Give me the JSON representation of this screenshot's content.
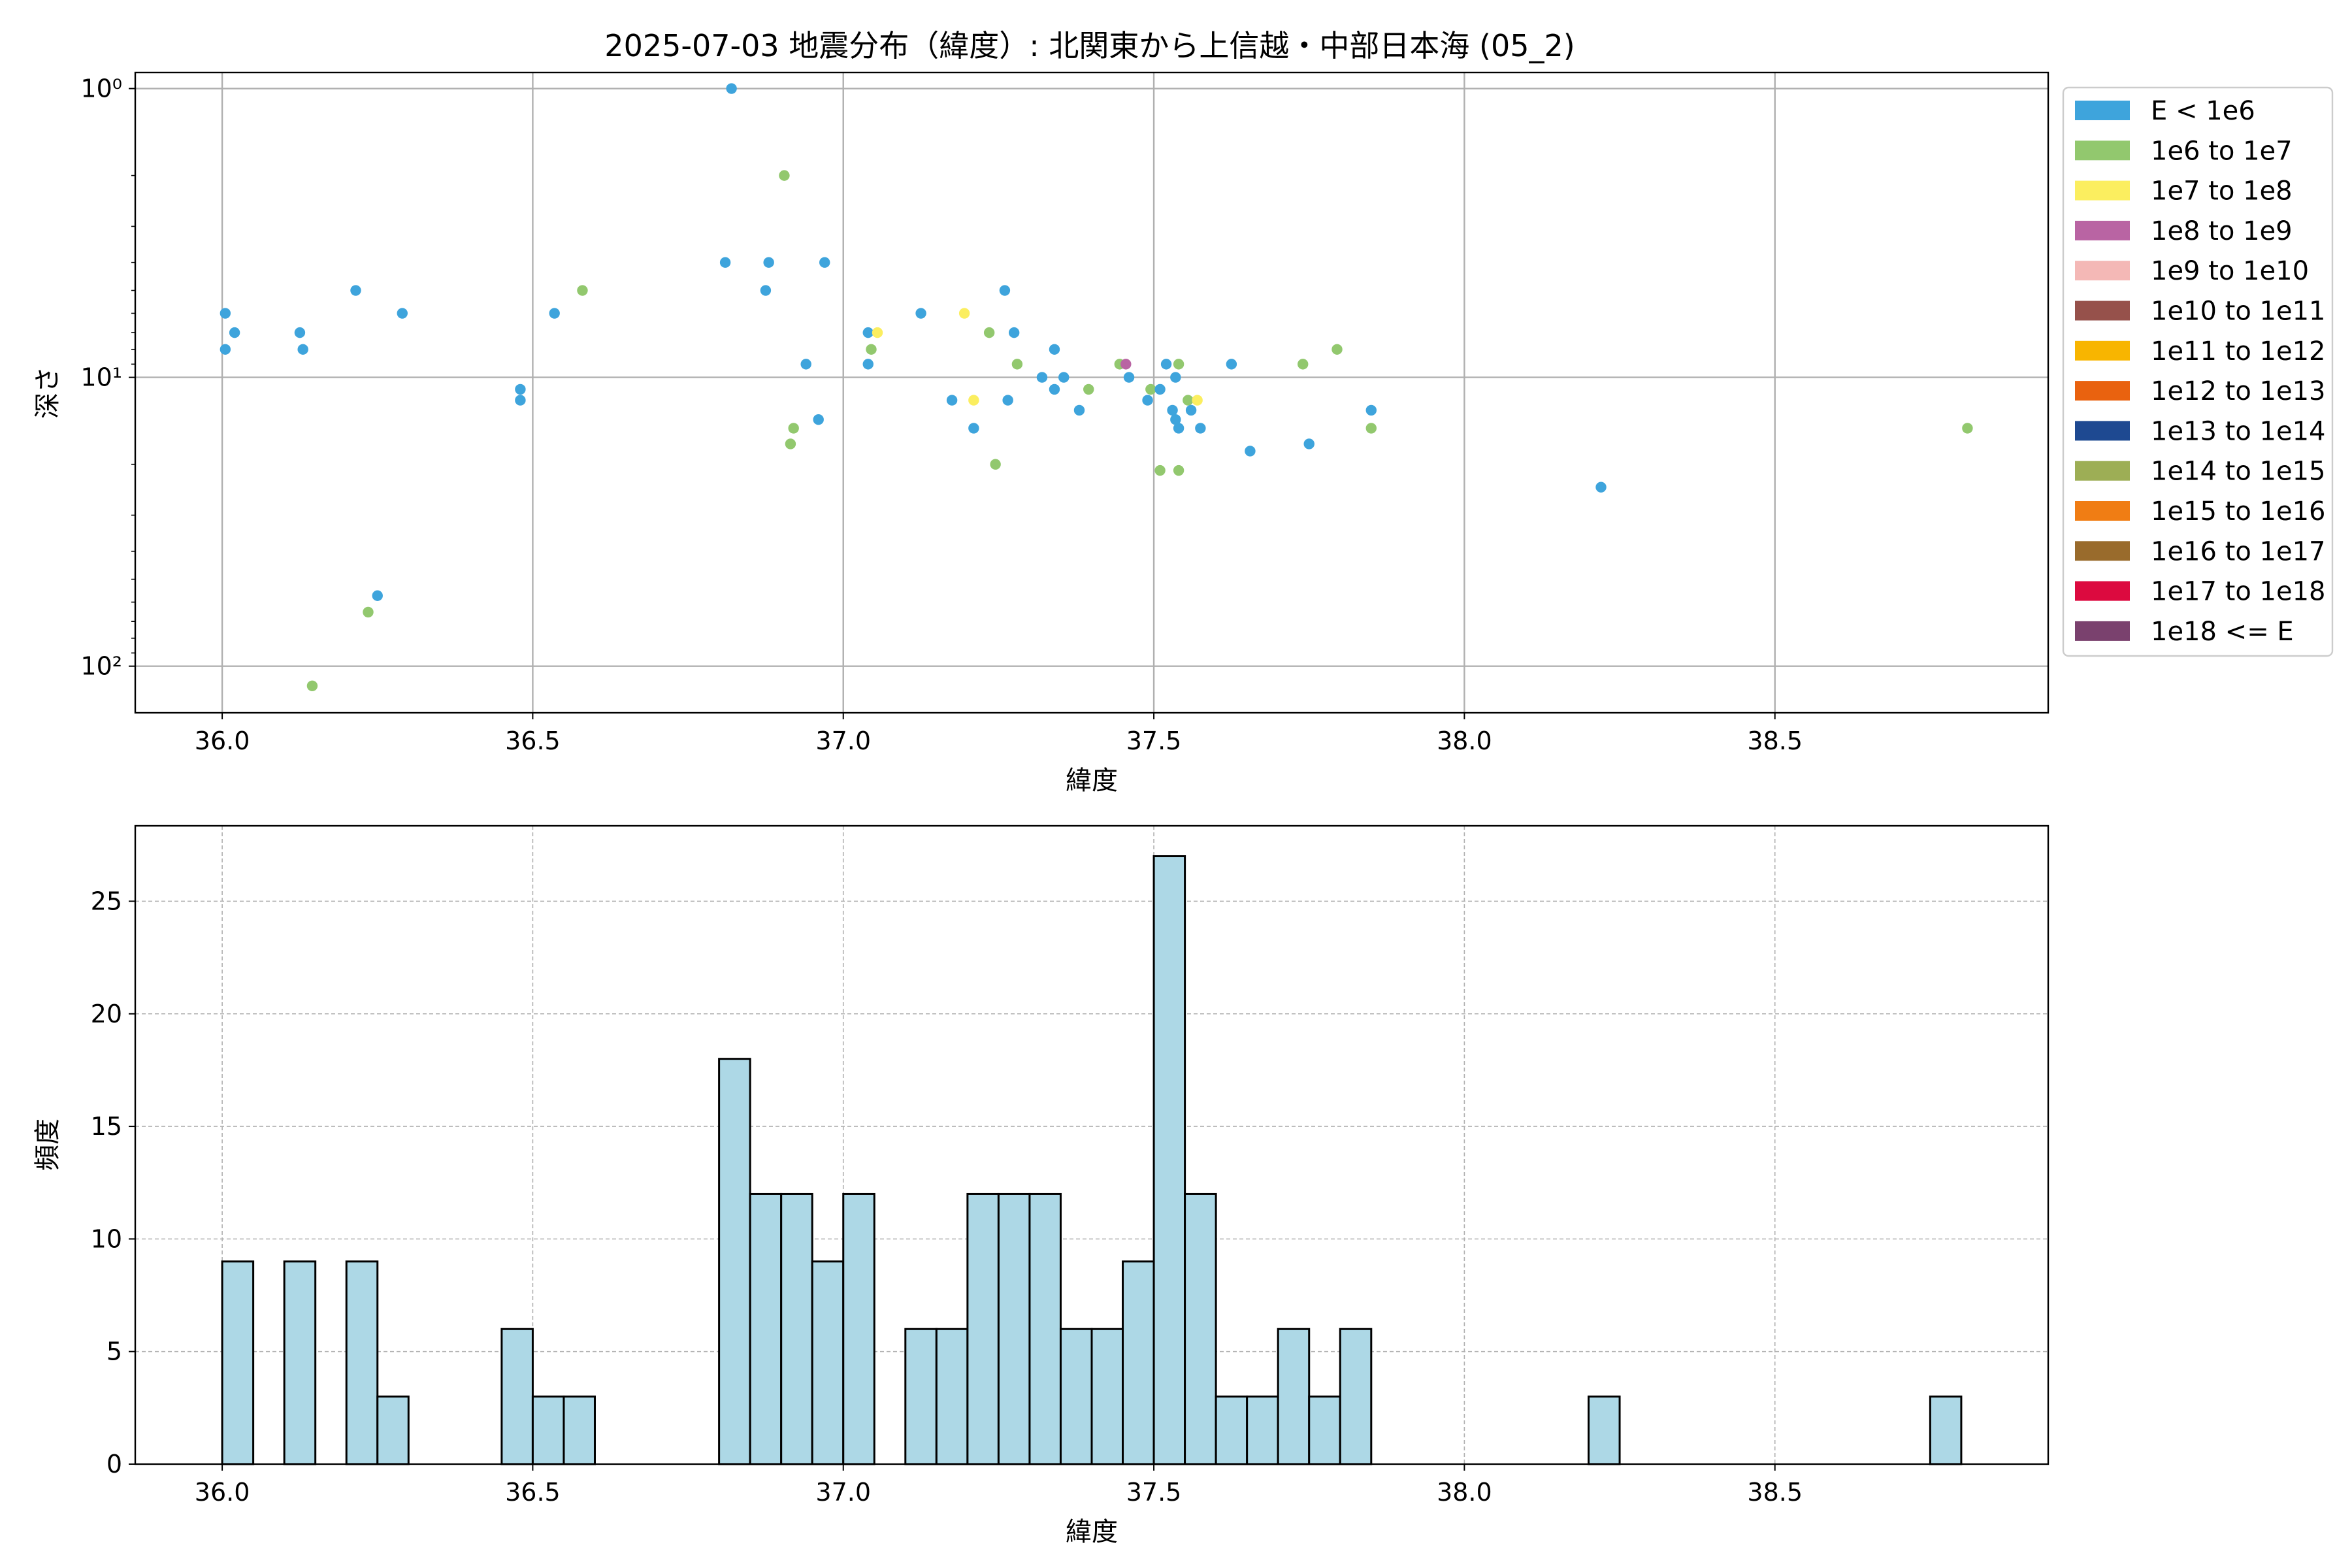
{
  "scatter": {
    "title": "2025-07-03 地震分布（緯度）: 北関東から上信越・中部日本海 (05_2)",
    "xlabel": "緯度",
    "ylabel": "深さ",
    "xticks": [
      "36.0",
      "36.5",
      "37.0",
      "37.5",
      "38.0",
      "38.5"
    ],
    "yticks": [
      "10⁰",
      "10¹",
      "10²"
    ],
    "legend": [
      {
        "label": "E < 1e6",
        "color": "#3ea4dc"
      },
      {
        "label": "1e6 to 1e7",
        "color": "#92c86e"
      },
      {
        "label": "1e7 to 1e8",
        "color": "#fbee5f"
      },
      {
        "label": "1e8 to 1e9",
        "color": "#b964a3"
      },
      {
        "label": "1e9 to 1e10",
        "color": "#f4b8b6"
      },
      {
        "label": "1e10 to 1e11",
        "color": "#96514b"
      },
      {
        "label": "1e11 to 1e12",
        "color": "#f8b500"
      },
      {
        "label": "1e12 to 1e13",
        "color": "#e9620f"
      },
      {
        "label": "1e13 to 1e14",
        "color": "#1e4991"
      },
      {
        "label": "1e14 to 1e15",
        "color": "#9dae55"
      },
      {
        "label": "1e15 to 1e16",
        "color": "#f07d14"
      },
      {
        "label": "1e16 to 1e17",
        "color": "#996b2c"
      },
      {
        "label": "1e17 to 1e18",
        "color": "#dc0a3f"
      },
      {
        "label": "1e18 <= E",
        "color": "#7a416e"
      }
    ]
  },
  "histogram": {
    "xlabel": "緯度",
    "ylabel": "頻度",
    "xticks": [
      "36.0",
      "36.5",
      "37.0",
      "37.5",
      "38.0",
      "38.5"
    ],
    "yticks": [
      "0",
      "5",
      "10",
      "15",
      "20",
      "25"
    ],
    "bar_color": "#add8e6"
  },
  "chart_data": [
    {
      "type": "scatter",
      "title": "2025-07-03 地震分布（緯度）: 北関東から上信越・中部日本海 (05_2)",
      "xlabel": "緯度",
      "ylabel": "深さ",
      "xlim": [
        35.86,
        38.94
      ],
      "ylim": [
        145,
        0.88
      ],
      "yscale": "log",
      "grid": true,
      "legend_position": "outside-right",
      "points": [
        {
          "x": 36.005,
          "y": 6,
          "c": 0
        },
        {
          "x": 36.005,
          "y": 8,
          "c": 0
        },
        {
          "x": 36.02,
          "y": 7,
          "c": 0
        },
        {
          "x": 36.125,
          "y": 7,
          "c": 0
        },
        {
          "x": 36.13,
          "y": 8,
          "c": 0
        },
        {
          "x": 36.145,
          "y": 117,
          "c": 1
        },
        {
          "x": 36.215,
          "y": 5,
          "c": 0
        },
        {
          "x": 36.235,
          "y": 65,
          "c": 1
        },
        {
          "x": 36.25,
          "y": 57,
          "c": 0
        },
        {
          "x": 36.29,
          "y": 6,
          "c": 0
        },
        {
          "x": 36.48,
          "y": 11,
          "c": 0
        },
        {
          "x": 36.48,
          "y": 12,
          "c": 0
        },
        {
          "x": 36.535,
          "y": 6,
          "c": 0
        },
        {
          "x": 36.58,
          "y": 5,
          "c": 1
        },
        {
          "x": 36.81,
          "y": 4,
          "c": 0
        },
        {
          "x": 36.82,
          "y": 1,
          "c": 0
        },
        {
          "x": 36.875,
          "y": 5,
          "c": 0
        },
        {
          "x": 36.88,
          "y": 4,
          "c": 0
        },
        {
          "x": 36.905,
          "y": 2,
          "c": 1
        },
        {
          "x": 36.915,
          "y": 17,
          "c": 1
        },
        {
          "x": 36.92,
          "y": 15,
          "c": 1
        },
        {
          "x": 36.94,
          "y": 9,
          "c": 0
        },
        {
          "x": 36.96,
          "y": 14,
          "c": 0
        },
        {
          "x": 36.97,
          "y": 4,
          "c": 0
        },
        {
          "x": 37.04,
          "y": 7,
          "c": 0
        },
        {
          "x": 37.04,
          "y": 9,
          "c": 0
        },
        {
          "x": 37.045,
          "y": 8,
          "c": 1
        },
        {
          "x": 37.055,
          "y": 7,
          "c": 2
        },
        {
          "x": 37.125,
          "y": 6,
          "c": 0
        },
        {
          "x": 37.175,
          "y": 12,
          "c": 0
        },
        {
          "x": 37.195,
          "y": 6,
          "c": 2
        },
        {
          "x": 37.21,
          "y": 15,
          "c": 0
        },
        {
          "x": 37.21,
          "y": 12,
          "c": 2
        },
        {
          "x": 37.235,
          "y": 7,
          "c": 1
        },
        {
          "x": 37.245,
          "y": 20,
          "c": 1
        },
        {
          "x": 37.26,
          "y": 5,
          "c": 0
        },
        {
          "x": 37.265,
          "y": 12,
          "c": 0
        },
        {
          "x": 37.275,
          "y": 7,
          "c": 0
        },
        {
          "x": 37.28,
          "y": 9,
          "c": 1
        },
        {
          "x": 37.32,
          "y": 10,
          "c": 0
        },
        {
          "x": 37.34,
          "y": 8,
          "c": 0
        },
        {
          "x": 37.34,
          "y": 11,
          "c": 0
        },
        {
          "x": 37.355,
          "y": 10,
          "c": 0
        },
        {
          "x": 37.38,
          "y": 13,
          "c": 0
        },
        {
          "x": 37.395,
          "y": 11,
          "c": 1
        },
        {
          "x": 37.445,
          "y": 9,
          "c": 1
        },
        {
          "x": 37.455,
          "y": 9,
          "c": 3
        },
        {
          "x": 37.46,
          "y": 10,
          "c": 0
        },
        {
          "x": 37.49,
          "y": 12,
          "c": 0
        },
        {
          "x": 37.495,
          "y": 11,
          "c": 1
        },
        {
          "x": 37.51,
          "y": 11,
          "c": 0
        },
        {
          "x": 37.51,
          "y": 21,
          "c": 1
        },
        {
          "x": 37.52,
          "y": 9,
          "c": 0
        },
        {
          "x": 37.53,
          "y": 13,
          "c": 0
        },
        {
          "x": 37.535,
          "y": 10,
          "c": 0
        },
        {
          "x": 37.535,
          "y": 14,
          "c": 0
        },
        {
          "x": 37.54,
          "y": 9,
          "c": 1
        },
        {
          "x": 37.54,
          "y": 15,
          "c": 0
        },
        {
          "x": 37.54,
          "y": 21,
          "c": 1
        },
        {
          "x": 37.555,
          "y": 12,
          "c": 1
        },
        {
          "x": 37.56,
          "y": 13,
          "c": 0
        },
        {
          "x": 37.57,
          "y": 12,
          "c": 2
        },
        {
          "x": 37.575,
          "y": 15,
          "c": 0
        },
        {
          "x": 37.625,
          "y": 9,
          "c": 0
        },
        {
          "x": 37.655,
          "y": 18,
          "c": 0
        },
        {
          "x": 37.74,
          "y": 9,
          "c": 1
        },
        {
          "x": 37.75,
          "y": 17,
          "c": 0
        },
        {
          "x": 37.795,
          "y": 8,
          "c": 1
        },
        {
          "x": 37.85,
          "y": 13,
          "c": 0
        },
        {
          "x": 37.85,
          "y": 15,
          "c": 1
        },
        {
          "x": 38.22,
          "y": 24,
          "c": 0
        },
        {
          "x": 38.81,
          "y": 15,
          "c": 1
        }
      ]
    },
    {
      "type": "bar",
      "xlabel": "緯度",
      "ylabel": "頻度",
      "xlim": [
        35.86,
        38.94
      ],
      "ylim": [
        0,
        28.35
      ],
      "grid": true,
      "bin_width": 0.05,
      "bins": [
        {
          "x0": 36.0,
          "x1": 36.05,
          "count": 9
        },
        {
          "x0": 36.1,
          "x1": 36.15,
          "count": 9
        },
        {
          "x0": 36.2,
          "x1": 36.25,
          "count": 9
        },
        {
          "x0": 36.25,
          "x1": 36.3,
          "count": 3
        },
        {
          "x0": 36.45,
          "x1": 36.5,
          "count": 6
        },
        {
          "x0": 36.5,
          "x1": 36.55,
          "count": 3
        },
        {
          "x0": 36.55,
          "x1": 36.6,
          "count": 3
        },
        {
          "x0": 36.8,
          "x1": 36.85,
          "count": 18
        },
        {
          "x0": 36.85,
          "x1": 36.9,
          "count": 12
        },
        {
          "x0": 36.9,
          "x1": 36.95,
          "count": 12
        },
        {
          "x0": 36.95,
          "x1": 37.0,
          "count": 9
        },
        {
          "x0": 37.0,
          "x1": 37.05,
          "count": 12
        },
        {
          "x0": 37.1,
          "x1": 37.15,
          "count": 6
        },
        {
          "x0": 37.15,
          "x1": 37.2,
          "count": 6
        },
        {
          "x0": 37.2,
          "x1": 37.25,
          "count": 12
        },
        {
          "x0": 37.25,
          "x1": 37.3,
          "count": 12
        },
        {
          "x0": 37.3,
          "x1": 37.35,
          "count": 12
        },
        {
          "x0": 37.35,
          "x1": 37.4,
          "count": 6
        },
        {
          "x0": 37.4,
          "x1": 37.45,
          "count": 6
        },
        {
          "x0": 37.45,
          "x1": 37.5,
          "count": 9
        },
        {
          "x0": 37.5,
          "x1": 37.55,
          "count": 27
        },
        {
          "x0": 37.55,
          "x1": 37.6,
          "count": 12
        },
        {
          "x0": 37.6,
          "x1": 37.65,
          "count": 3
        },
        {
          "x0": 37.65,
          "x1": 37.7,
          "count": 3
        },
        {
          "x0": 37.7,
          "x1": 37.75,
          "count": 6
        },
        {
          "x0": 37.75,
          "x1": 37.8,
          "count": 3
        },
        {
          "x0": 37.8,
          "x1": 37.85,
          "count": 6
        },
        {
          "x0": 38.2,
          "x1": 38.25,
          "count": 3
        },
        {
          "x0": 38.75,
          "x1": 38.8,
          "count": 3
        }
      ]
    }
  ]
}
